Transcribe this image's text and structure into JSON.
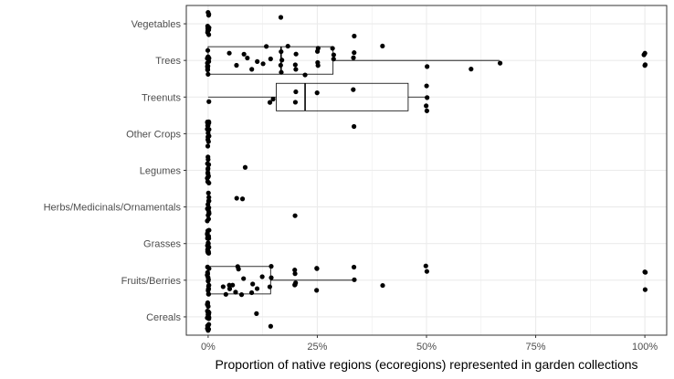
{
  "chart_data": {
    "type": "boxplot-jitter",
    "orientation": "horizontal",
    "xlabel": "Proportion of native regions (ecoregions) represented in garden collections",
    "ylabel": "",
    "xlim": [
      -0.05,
      1.05
    ],
    "x_ticks": [
      0,
      0.25,
      0.5,
      0.75,
      1.0
    ],
    "x_tick_labels": [
      "0%",
      "25%",
      "50%",
      "75%",
      "100%"
    ],
    "grid": true,
    "legend": "none",
    "colors": {
      "points": "#000000",
      "box": "#000000",
      "grid": "#ebebeb",
      "panel_border": "#333333"
    },
    "categories": [
      "Vegetables",
      "Trees",
      "Treenuts",
      "Other Crops",
      "Legumes",
      "Herbs/Medicinals/Ornamentals",
      "Grasses",
      "Fruits/Berries",
      "Cereals"
    ],
    "boxes": [
      {
        "category": "Trees",
        "min": 0,
        "q1": 0,
        "median": 0.167,
        "q3": 0.286,
        "max": 0.667
      },
      {
        "category": "Treenuts",
        "min": 0,
        "q1": 0.156,
        "median": 0.222,
        "q3": 0.458,
        "max": 0.5
      },
      {
        "category": "Fruits/Berries",
        "min": 0,
        "q1": 0,
        "median": 0,
        "q3": 0.143,
        "max": 0.333
      }
    ],
    "points": [
      {
        "category": "Vegetables",
        "x": [
          0,
          0,
          0,
          0,
          0,
          0,
          0,
          0,
          0,
          0,
          0,
          0,
          0.167,
          0.333
        ]
      },
      {
        "category": "Trees",
        "x": [
          0,
          0,
          0,
          0,
          0,
          0,
          0,
          0,
          0,
          0,
          0,
          0,
          0,
          0,
          0,
          0,
          0.05,
          0.067,
          0.083,
          0.091,
          0.1,
          0.111,
          0.125,
          0.133,
          0.143,
          0.167,
          0.167,
          0.167,
          0.167,
          0.182,
          0.2,
          0.2,
          0.2,
          0.222,
          0.25,
          0.25,
          0.25,
          0.25,
          0.286,
          0.286,
          0.286,
          0.333,
          0.333,
          0.4,
          0.5,
          0.6,
          0.667,
          1.0,
          1.0,
          1.0,
          1.0
        ]
      },
      {
        "category": "Treenuts",
        "x": [
          0,
          0.143,
          0.15,
          0.2,
          0.2,
          0.25,
          0.333,
          0.5,
          0.5,
          0.5,
          0.5
        ]
      },
      {
        "category": "Other Crops",
        "x": [
          0,
          0,
          0,
          0,
          0,
          0,
          0,
          0,
          0,
          0,
          0,
          0,
          0,
          0,
          0.333
        ]
      },
      {
        "category": "Legumes",
        "x": [
          0,
          0,
          0,
          0,
          0,
          0,
          0,
          0,
          0,
          0,
          0,
          0,
          0,
          0,
          0,
          0,
          0.083
        ]
      },
      {
        "category": "Herbs/Medicinals/Ornamentals",
        "x": [
          0,
          0,
          0,
          0,
          0,
          0,
          0,
          0,
          0,
          0,
          0,
          0,
          0,
          0,
          0,
          0.067,
          0.077,
          0.2
        ]
      },
      {
        "category": "Grasses",
        "x": [
          0,
          0,
          0,
          0,
          0,
          0,
          0,
          0,
          0,
          0,
          0,
          0,
          0,
          0,
          0,
          0,
          0,
          0,
          0,
          0
        ]
      },
      {
        "category": "Fruits/Berries",
        "x": [
          0,
          0,
          0,
          0,
          0,
          0,
          0,
          0,
          0,
          0,
          0,
          0,
          0,
          0,
          0,
          0.033,
          0.04,
          0.05,
          0.05,
          0.056,
          0.063,
          0.067,
          0.071,
          0.077,
          0.083,
          0.1,
          0.1,
          0.111,
          0.125,
          0.143,
          0.143,
          0.143,
          0.2,
          0.2,
          0.2,
          0.2,
          0.2,
          0.25,
          0.25,
          0.25,
          0.333,
          0.333,
          0.4,
          0.5,
          0.5,
          1.0,
          1.0,
          1.0
        ]
      },
      {
        "category": "Cereals",
        "x": [
          0,
          0,
          0,
          0,
          0,
          0,
          0,
          0,
          0,
          0,
          0,
          0,
          0,
          0,
          0,
          0,
          0,
          0,
          0,
          0,
          0,
          0,
          0,
          0.111,
          0.143
        ]
      }
    ]
  }
}
